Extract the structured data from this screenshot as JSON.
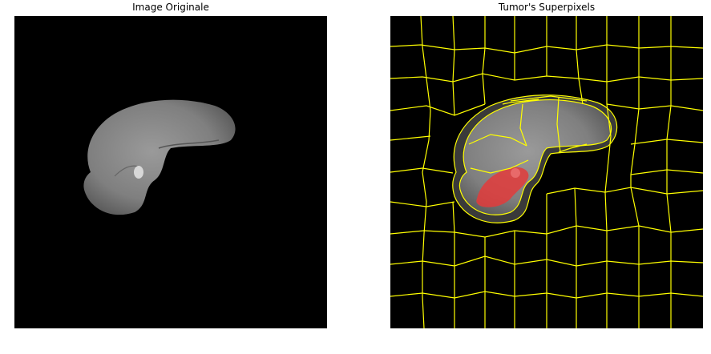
{
  "panels": {
    "left": {
      "title": "Image Originale"
    },
    "right": {
      "title": "Tumor's Superpixels"
    }
  },
  "colors": {
    "background": "#000000",
    "liver_tissue": "#8a8a8a",
    "superpixel_boundary": "#ffff00",
    "tumor_overlay": "#e33b3b",
    "page": "#ffffff"
  }
}
